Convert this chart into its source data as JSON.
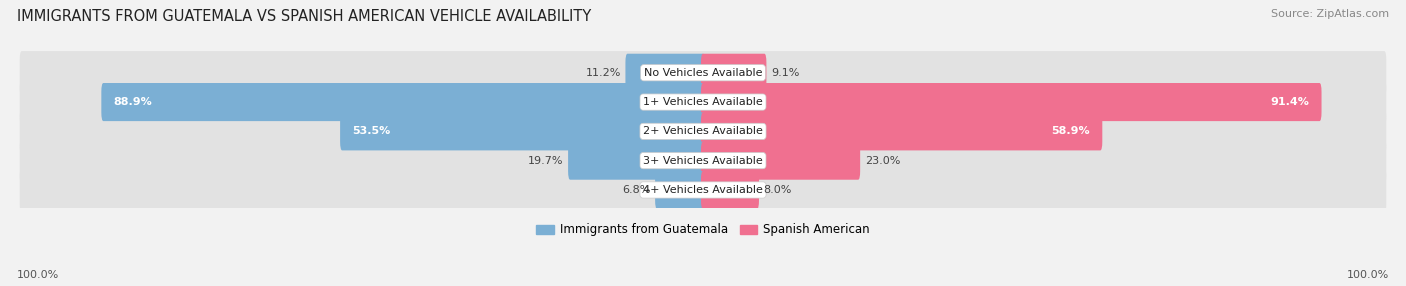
{
  "title": "IMMIGRANTS FROM GUATEMALA VS SPANISH AMERICAN VEHICLE AVAILABILITY",
  "source": "Source: ZipAtlas.com",
  "categories": [
    "No Vehicles Available",
    "1+ Vehicles Available",
    "2+ Vehicles Available",
    "3+ Vehicles Available",
    "4+ Vehicles Available"
  ],
  "guatemala_values": [
    11.2,
    88.9,
    53.5,
    19.7,
    6.8
  ],
  "spanish_values": [
    9.1,
    91.4,
    58.9,
    23.0,
    8.0
  ],
  "bar_color_guatemala": "#7bafd4",
  "bar_color_spanish": "#f07090",
  "bg_color": "#f2f2f2",
  "row_bg_color": "#e0e0e0",
  "max_val": 100.0,
  "legend_label_guatemala": "Immigrants from Guatemala",
  "legend_label_spanish": "Spanish American",
  "title_fontsize": 10.5,
  "source_fontsize": 8,
  "label_fontsize": 8,
  "category_fontsize": 8
}
